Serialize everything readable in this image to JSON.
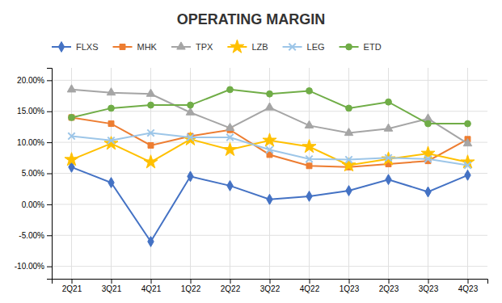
{
  "chart_data": {
    "type": "line",
    "title": "OPERATING MARGIN",
    "categories": [
      "2Q21",
      "3Q21",
      "4Q21",
      "1Q22",
      "2Q22",
      "3Q22",
      "4Q22",
      "1Q23",
      "2Q23",
      "3Q23",
      "4Q23"
    ],
    "series": [
      {
        "name": "FLXS",
        "color": "#4472c4",
        "marker": "diamond",
        "values": [
          0.06,
          0.035,
          -0.06,
          0.045,
          0.03,
          0.008,
          0.013,
          0.022,
          0.04,
          0.02,
          0.047
        ]
      },
      {
        "name": "MHK",
        "color": "#ed7d31",
        "marker": "square",
        "values": [
          0.14,
          0.13,
          0.095,
          0.11,
          0.12,
          0.08,
          0.062,
          0.06,
          0.065,
          0.07,
          0.105
        ]
      },
      {
        "name": "TPX",
        "color": "#a5a5a5",
        "marker": "triangle",
        "values": [
          0.185,
          0.18,
          0.178,
          0.148,
          0.123,
          0.156,
          0.127,
          0.115,
          0.122,
          0.138,
          0.098
        ]
      },
      {
        "name": "LZB",
        "color": "#ffc000",
        "marker": "star",
        "values": [
          0.072,
          0.098,
          0.068,
          0.105,
          0.088,
          0.103,
          0.093,
          0.063,
          0.073,
          0.082,
          0.068
        ]
      },
      {
        "name": "LEG",
        "color": "#9dc6e8",
        "marker": "x",
        "values": [
          0.11,
          0.103,
          0.115,
          0.108,
          0.108,
          0.088,
          0.073,
          0.072,
          0.075,
          0.073,
          0.063
        ]
      },
      {
        "name": "ETD",
        "color": "#70ad47",
        "marker": "circle",
        "values": [
          0.14,
          0.155,
          0.16,
          0.16,
          0.185,
          0.178,
          0.183,
          0.155,
          0.165,
          0.13,
          0.13
        ]
      }
    ],
    "ylim": [
      -0.12,
      0.22
    ],
    "yticks": [
      {
        "value": -0.1,
        "label": "-10.00%"
      },
      {
        "value": -0.05,
        "label": "-5.00%"
      },
      {
        "value": 0.0,
        "label": "0.00%"
      },
      {
        "value": 0.05,
        "label": "5.00%"
      },
      {
        "value": 0.1,
        "label": "10.00%"
      },
      {
        "value": 0.15,
        "label": "15.00%"
      },
      {
        "value": 0.2,
        "label": "20.00%"
      }
    ],
    "grid": true,
    "legend": "top"
  }
}
